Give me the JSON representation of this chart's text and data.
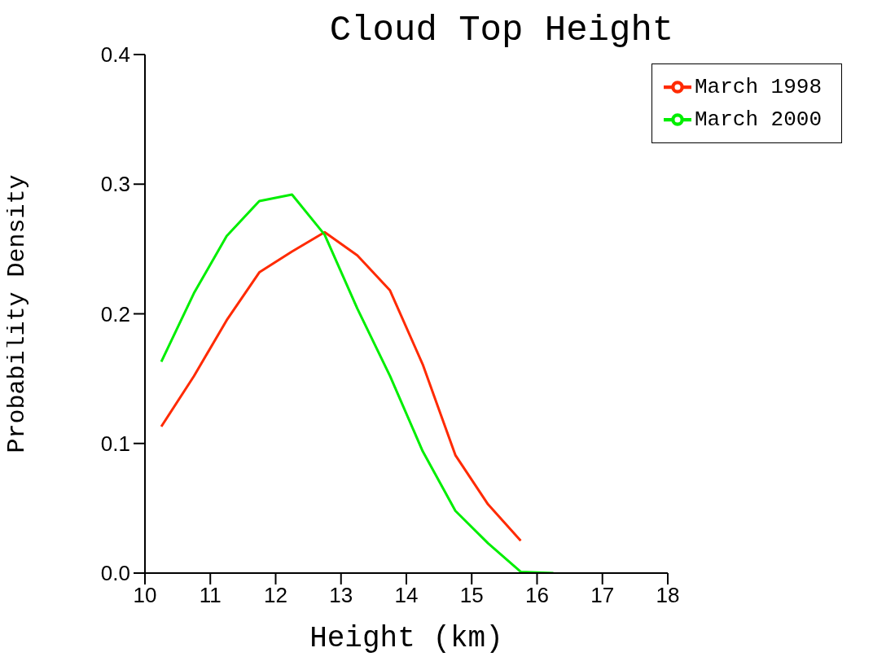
{
  "chart_data": {
    "type": "line",
    "title": "Cloud Top Height",
    "xlabel": "Height (km)",
    "ylabel": "Probability Density",
    "xlim": [
      10,
      18
    ],
    "xticks": [
      10,
      11,
      12,
      13,
      14,
      15,
      16,
      17,
      18
    ],
    "ylim": [
      0,
      0.4
    ],
    "yticks": [
      {
        "value": 0,
        "label": "0.0"
      },
      {
        "value": 0.1,
        "label": "0.1"
      },
      {
        "value": 0.2,
        "label": "0.2"
      },
      {
        "value": 0.3,
        "label": "0.3"
      },
      {
        "value": 0.4,
        "label": "0.4"
      }
    ],
    "grid": false,
    "legend": "top right",
    "marker": "none",
    "line_style": "solid",
    "series": [
      {
        "name": "March 1998",
        "color": "#ff2a00",
        "x": [
          10.25,
          10.75,
          11.25,
          11.75,
          12.25,
          12.75,
          13.25,
          13.75,
          14.25,
          14.75,
          15.25,
          15.75
        ],
        "values": [
          0.113,
          0.152,
          0.195,
          0.232,
          0.248,
          0.263,
          0.245,
          0.218,
          0.161,
          0.091,
          0.053,
          0.025
        ]
      },
      {
        "name": "March 2000",
        "color": "#00ee00",
        "x": [
          10.25,
          10.75,
          11.25,
          11.75,
          12.25,
          12.75,
          13.25,
          13.75,
          14.25,
          14.75,
          15.25,
          15.75,
          16.25
        ],
        "values": [
          0.163,
          0.216,
          0.26,
          0.287,
          0.292,
          0.261,
          0.204,
          0.152,
          0.094,
          0.048,
          0.023,
          0.001,
          0
        ]
      }
    ]
  }
}
